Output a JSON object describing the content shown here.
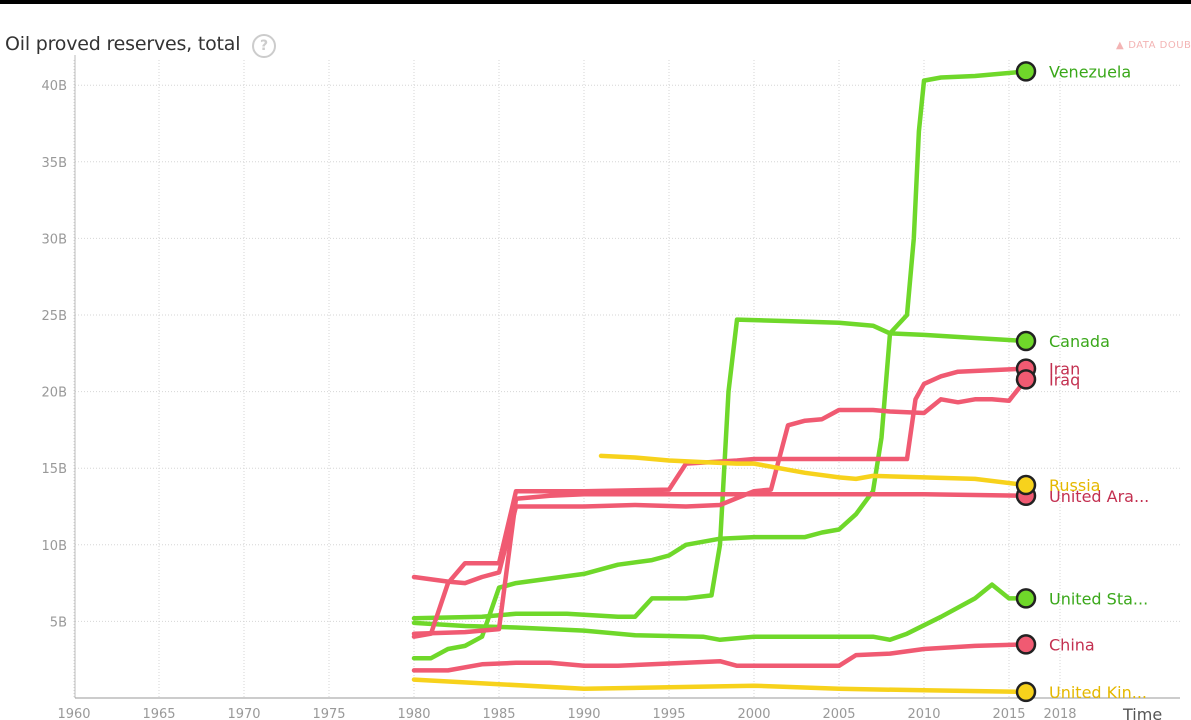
{
  "chart_data": {
    "type": "line",
    "title": "Oil proved reserves, total",
    "xlabel": "Time",
    "ylabel": "",
    "xlim": [
      1960,
      2020
    ],
    "ylim": [
      0,
      42000000000
    ],
    "grid": true,
    "x_ticks": [
      1960,
      1965,
      1970,
      1975,
      1980,
      1985,
      1990,
      1995,
      2000,
      2005,
      2010,
      2015,
      2018
    ],
    "y_ticks": [
      {
        "value": 5000000000,
        "label": "5B"
      },
      {
        "value": 10000000000,
        "label": "10B"
      },
      {
        "value": 15000000000,
        "label": "15B"
      },
      {
        "value": 20000000000,
        "label": "20B"
      },
      {
        "value": 25000000000,
        "label": "25B"
      },
      {
        "value": 30000000000,
        "label": "30B"
      },
      {
        "value": 35000000000,
        "label": "35B"
      },
      {
        "value": 40000000000,
        "label": "40B"
      }
    ],
    "series": [
      {
        "name": "Venezuela",
        "color": "#6fd82a",
        "label_color": "#3aa81a",
        "points": [
          [
            1980,
            5200000000.0
          ],
          [
            1984,
            5300000000.0
          ],
          [
            1986,
            5500000000.0
          ],
          [
            1989,
            5500000000.0
          ],
          [
            1992,
            5300000000.0
          ],
          [
            1993,
            5300000000.0
          ],
          [
            1994,
            6500000000.0
          ],
          [
            1996,
            6500000000.0
          ],
          [
            1997.5,
            6700000000.0
          ],
          [
            1998,
            10000000000.0
          ],
          [
            1998.5,
            20000000000.0
          ],
          [
            1999,
            24700000000.0
          ],
          [
            2002,
            24600000000.0
          ],
          [
            2005,
            24500000000.0
          ],
          [
            2007,
            24300000000.0
          ],
          [
            2008,
            23800000000.0
          ],
          [
            2009,
            25000000000.0
          ],
          [
            2009.4,
            30000000000.0
          ],
          [
            2009.7,
            37000000000.0
          ],
          [
            2010,
            40300000000.0
          ],
          [
            2011,
            40500000000.0
          ],
          [
            2013,
            40600000000.0
          ],
          [
            2016,
            40900000000.0
          ]
        ]
      },
      {
        "name": "Canada",
        "color": "#6fd82a",
        "label_color": "#3aa81a",
        "points": [
          [
            1980,
            2600000000.0
          ],
          [
            1981,
            2600000000.0
          ],
          [
            1982,
            3200000000.0
          ],
          [
            1983,
            3400000000.0
          ],
          [
            1984,
            4000000000.0
          ],
          [
            1985,
            7200000000.0
          ],
          [
            1986,
            7500000000.0
          ],
          [
            1988,
            7800000000.0
          ],
          [
            1990,
            8100000000.0
          ],
          [
            1992,
            8700000000.0
          ],
          [
            1994,
            9000000000.0
          ],
          [
            1995,
            9300000000.0
          ],
          [
            1996,
            10000000000.0
          ],
          [
            1998,
            10400000000.0
          ],
          [
            2000,
            10500000000.0
          ],
          [
            2003,
            10500000000.0
          ],
          [
            2004,
            10800000000.0
          ],
          [
            2005,
            11000000000.0
          ],
          [
            2006,
            12000000000.0
          ],
          [
            2007,
            13500000000.0
          ],
          [
            2007.5,
            17000000000.0
          ],
          [
            2008,
            23800000000.0
          ],
          [
            2010,
            23700000000.0
          ],
          [
            2013,
            23500000000.0
          ],
          [
            2016,
            23300000000.0
          ]
        ]
      },
      {
        "name": "United States",
        "label": "United Sta...",
        "color": "#6fd82a",
        "label_color": "#3aa81a",
        "points": [
          [
            1980,
            4900000000.0
          ],
          [
            1983,
            4700000000.0
          ],
          [
            1986,
            4600000000.0
          ],
          [
            1990,
            4400000000.0
          ],
          [
            1993,
            4100000000.0
          ],
          [
            1997,
            4000000000.0
          ],
          [
            1998,
            3800000000.0
          ],
          [
            2000,
            4000000000.0
          ],
          [
            2004,
            4000000000.0
          ],
          [
            2007,
            4000000000.0
          ],
          [
            2008,
            3800000000.0
          ],
          [
            2009,
            4200000000.0
          ],
          [
            2011,
            5300000000.0
          ],
          [
            2013,
            6500000000.0
          ],
          [
            2014,
            7400000000.0
          ],
          [
            2015,
            6500000000.0
          ],
          [
            2016,
            6500000000.0
          ]
        ]
      },
      {
        "name": "Iran",
        "color": "#f05a72",
        "label_color": "#c33050",
        "points": [
          [
            1980,
            4000000000.0
          ],
          [
            1981,
            4200000000.0
          ],
          [
            1982,
            7500000000.0
          ],
          [
            1983,
            8800000000.0
          ],
          [
            1985,
            8800000000.0
          ],
          [
            1986,
            13500000000.0
          ],
          [
            1990,
            13500000000.0
          ],
          [
            1995,
            13600000000.0
          ],
          [
            1996,
            15300000000.0
          ],
          [
            1999,
            15500000000.0
          ],
          [
            2000,
            15600000000.0
          ],
          [
            2004,
            15600000000.0
          ],
          [
            2007,
            15600000000.0
          ],
          [
            2009,
            15600000000.0
          ],
          [
            2009.5,
            19500000000.0
          ],
          [
            2010,
            20500000000.0
          ],
          [
            2011,
            21000000000.0
          ],
          [
            2012,
            21300000000.0
          ],
          [
            2016,
            21500000000.0
          ]
        ]
      },
      {
        "name": "Iraq",
        "color": "#f05a72",
        "label_color": "#c33050",
        "points": [
          [
            1980,
            7900000000.0
          ],
          [
            1982,
            7600000000.0
          ],
          [
            1983,
            7500000000.0
          ],
          [
            1984,
            7900000000.0
          ],
          [
            1985,
            8200000000.0
          ],
          [
            1986,
            12500000000.0
          ],
          [
            1987,
            12500000000.0
          ],
          [
            1990,
            12500000000.0
          ],
          [
            1993,
            12600000000.0
          ],
          [
            1996,
            12500000000.0
          ],
          [
            1998,
            12600000000.0
          ],
          [
            2000,
            13500000000.0
          ],
          [
            2001,
            13600000000.0
          ],
          [
            2002,
            17800000000.0
          ],
          [
            2003,
            18100000000.0
          ],
          [
            2004,
            18200000000.0
          ],
          [
            2005,
            18800000000.0
          ],
          [
            2007,
            18800000000.0
          ],
          [
            2008,
            18700000000.0
          ],
          [
            2010,
            18600000000.0
          ],
          [
            2011,
            19500000000.0
          ],
          [
            2012,
            19300000000.0
          ],
          [
            2013,
            19500000000.0
          ],
          [
            2014,
            19500000000.0
          ],
          [
            2015,
            19400000000.0
          ],
          [
            2016,
            20800000000.0
          ]
        ]
      },
      {
        "name": "United Arab Emirates",
        "label": "United Ara...",
        "color": "#f05a72",
        "label_color": "#c33050",
        "points": [
          [
            1980,
            4200000000.0
          ],
          [
            1983,
            4300000000.0
          ],
          [
            1985,
            4500000000.0
          ],
          [
            1986,
            13000000000.0
          ],
          [
            1988,
            13200000000.0
          ],
          [
            1990,
            13300000000.0
          ],
          [
            1995,
            13300000000.0
          ],
          [
            2000,
            13300000000.0
          ],
          [
            2005,
            13300000000.0
          ],
          [
            2010,
            13300000000.0
          ],
          [
            2016,
            13200000000.0
          ]
        ]
      },
      {
        "name": "China",
        "color": "#f05a72",
        "label_color": "#c33050",
        "points": [
          [
            1980,
            1800000000.0
          ],
          [
            1982,
            1800000000.0
          ],
          [
            1984,
            2200000000.0
          ],
          [
            1986,
            2300000000.0
          ],
          [
            1988,
            2300000000.0
          ],
          [
            1990,
            2100000000.0
          ],
          [
            1992,
            2100000000.0
          ],
          [
            1994,
            2200000000.0
          ],
          [
            1996,
            2300000000.0
          ],
          [
            1998,
            2400000000.0
          ],
          [
            1999,
            2100000000.0
          ],
          [
            2002,
            2100000000.0
          ],
          [
            2005,
            2100000000.0
          ],
          [
            2006,
            2800000000.0
          ],
          [
            2008,
            2900000000.0
          ],
          [
            2010,
            3200000000.0
          ],
          [
            2013,
            3400000000.0
          ],
          [
            2016,
            3500000000.0
          ]
        ]
      },
      {
        "name": "Russia",
        "color": "#f7d21c",
        "label_color": "#e5b800",
        "points": [
          [
            1991,
            15800000000.0
          ],
          [
            1993,
            15700000000.0
          ],
          [
            1995,
            15500000000.0
          ],
          [
            1997,
            15400000000.0
          ],
          [
            1999,
            15300000000.0
          ],
          [
            2000,
            15300000000.0
          ],
          [
            2003,
            14700000000.0
          ],
          [
            2005,
            14400000000.0
          ],
          [
            2006,
            14300000000.0
          ],
          [
            2007,
            14500000000.0
          ],
          [
            2010,
            14400000000.0
          ],
          [
            2013,
            14300000000.0
          ],
          [
            2016,
            13900000000.0
          ]
        ]
      },
      {
        "name": "United Kingdom",
        "label": "United Kin...",
        "color": "#f7d21c",
        "label_color": "#e5b800",
        "points": [
          [
            1980,
            1200000000.0
          ],
          [
            1985,
            900000000.0
          ],
          [
            1990,
            600000000.0
          ],
          [
            1995,
            700000000.0
          ],
          [
            2000,
            800000000.0
          ],
          [
            2005,
            600000000.0
          ],
          [
            2010,
            500000000.0
          ],
          [
            2016,
            400000000.0
          ]
        ]
      }
    ]
  }
}
